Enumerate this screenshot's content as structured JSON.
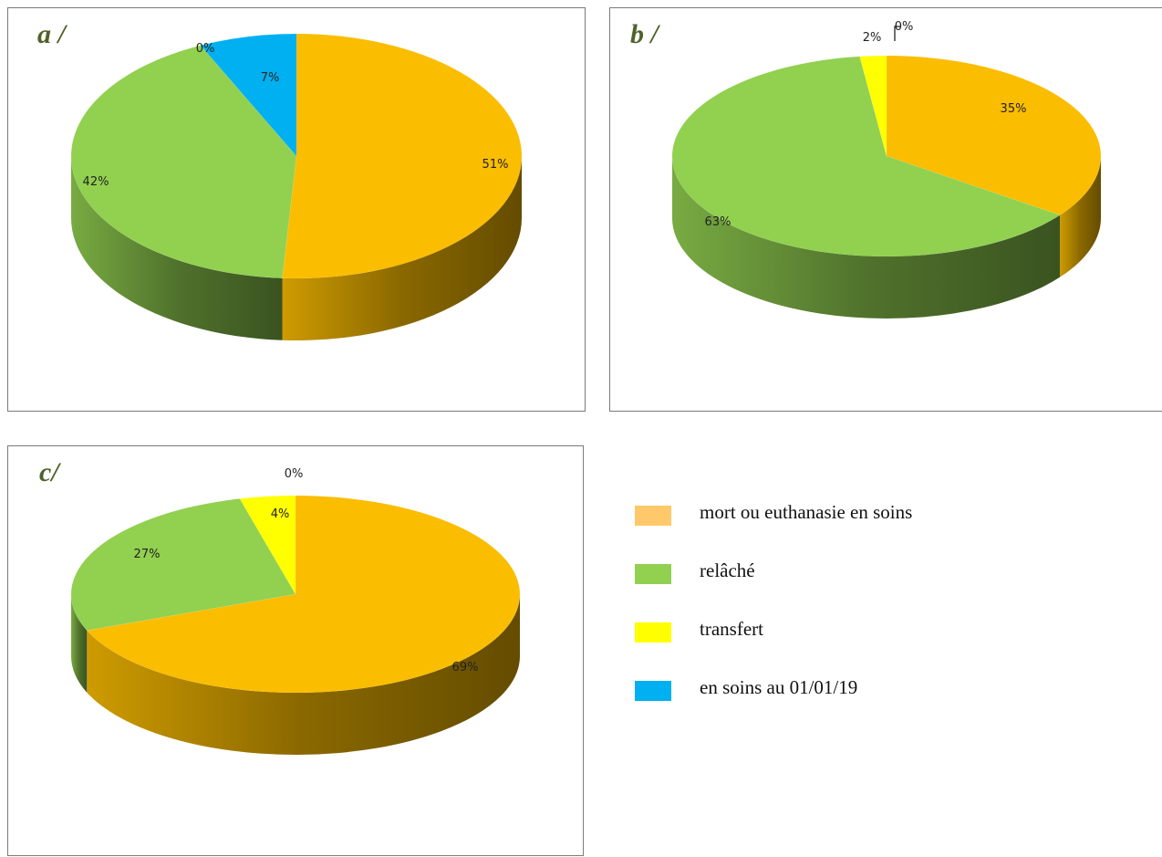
{
  "colors": {
    "mort": "#fbbd00",
    "relache": "#92d050",
    "transfert": "#ffff00",
    "en_soins": "#00b0f0",
    "legend_mort": "#ffc96b",
    "panel_label": "#4f6228"
  },
  "legend": [
    {
      "label": "mort ou euthanasie en soins",
      "color": "#ffc96b"
    },
    {
      "label": "relâché",
      "color": "#92d050"
    },
    {
      "label": "transfert",
      "color": "#ffff00"
    },
    {
      "label": "en soins au 01/01/19",
      "color": "#00b0f0"
    }
  ],
  "chart_data": [
    {
      "type": "pie",
      "title": "a /",
      "categories": [
        "mort ou euthanasie en soins",
        "relâché",
        "transfert",
        "en soins au 01/01/19"
      ],
      "values": [
        51,
        42,
        0,
        7
      ],
      "labels": [
        "51%",
        "42%",
        "0%",
        "7%"
      ],
      "legend": "right"
    },
    {
      "type": "pie",
      "title": "b /",
      "categories": [
        "mort ou euthanasie en soins",
        "relâché",
        "transfert",
        "en soins au 01/01/19"
      ],
      "values": [
        35,
        63,
        2,
        0
      ],
      "labels": [
        "35%",
        "63%",
        "2%",
        "0%"
      ],
      "legend": "right"
    },
    {
      "type": "pie",
      "title": "c/",
      "categories": [
        "mort ou euthanasie en soins",
        "relâché",
        "transfert",
        "en soins au 01/01/19"
      ],
      "values": [
        69,
        27,
        4,
        0
      ],
      "labels": [
        "69%",
        "27%",
        "4%",
        "0%"
      ],
      "legend": "right"
    }
  ]
}
